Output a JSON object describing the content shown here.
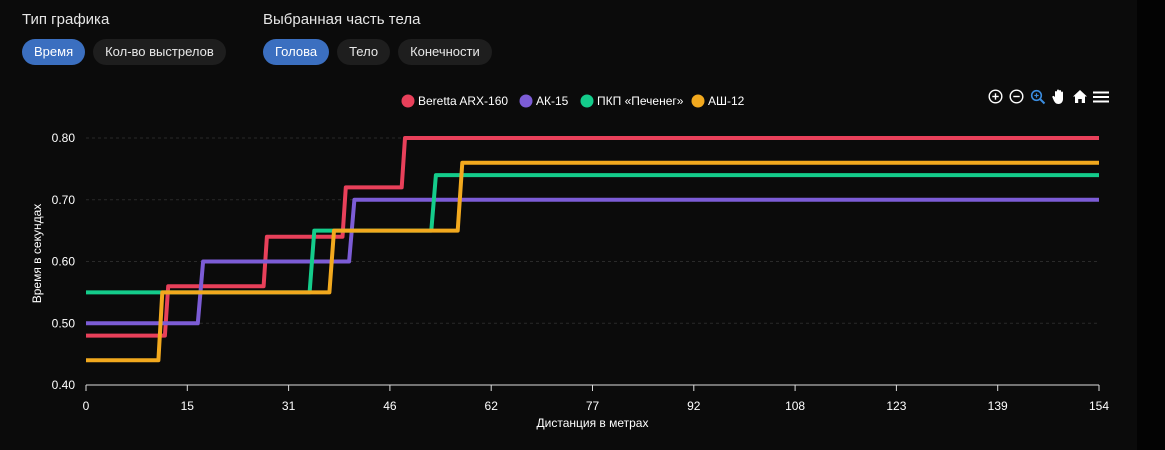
{
  "controls": {
    "chart_type": {
      "title": "Тип графика",
      "options": [
        {
          "label": "Время",
          "active": true
        },
        {
          "label": "Кол-во выстрелов",
          "active": false
        }
      ]
    },
    "body_part": {
      "title": "Выбранная часть тела",
      "options": [
        {
          "label": "Голова",
          "active": true
        },
        {
          "label": "Тело",
          "active": false
        },
        {
          "label": "Конечности",
          "active": false
        }
      ]
    }
  },
  "toolbar": {
    "icons": [
      "zoom-in-icon",
      "zoom-out-icon",
      "zoom-select-icon",
      "pan-hand-icon",
      "reset-home-icon",
      "menu-icon"
    ]
  },
  "chart_data": {
    "type": "line",
    "step": true,
    "xlabel": "Дистанция в метрах",
    "ylabel": "Время в секундах",
    "xlim": [
      0,
      154
    ],
    "ylim": [
      0.4,
      0.8
    ],
    "x_ticks": [
      "0",
      "15",
      "31",
      "46",
      "62",
      "77",
      "92",
      "108",
      "123",
      "139",
      "154"
    ],
    "y_ticks": [
      "0.40",
      "0.50",
      "0.60",
      "0.70",
      "0.80"
    ],
    "grid": "horizontal-dashed",
    "legend": "top-center",
    "series": [
      {
        "name": "Beretta ARX-160",
        "color": "#e8405a",
        "points": [
          [
            0,
            0.48
          ],
          [
            12,
            0.48
          ],
          [
            12.5,
            0.56
          ],
          [
            27,
            0.56
          ],
          [
            27.5,
            0.64
          ],
          [
            39,
            0.64
          ],
          [
            39.5,
            0.72
          ],
          [
            48,
            0.72
          ],
          [
            48.5,
            0.8
          ],
          [
            154,
            0.8
          ]
        ]
      },
      {
        "name": "АК-15",
        "color": "#7c5cd6",
        "points": [
          [
            0,
            0.5
          ],
          [
            17,
            0.5
          ],
          [
            17.8,
            0.6
          ],
          [
            40,
            0.6
          ],
          [
            40.8,
            0.7
          ],
          [
            154,
            0.7
          ]
        ]
      },
      {
        "name": "ПКП «Печенег»",
        "color": "#14cc8b",
        "points": [
          [
            0,
            0.55
          ],
          [
            34,
            0.55
          ],
          [
            34.7,
            0.65
          ],
          [
            52.5,
            0.65
          ],
          [
            53.2,
            0.74
          ],
          [
            154,
            0.74
          ]
        ]
      },
      {
        "name": "АШ-12",
        "color": "#f2a91e",
        "points": [
          [
            0,
            0.44
          ],
          [
            11,
            0.44
          ],
          [
            11.6,
            0.55
          ],
          [
            37,
            0.55
          ],
          [
            37.7,
            0.65
          ],
          [
            56.5,
            0.65
          ],
          [
            57.2,
            0.76
          ],
          [
            154,
            0.76
          ]
        ]
      }
    ]
  }
}
